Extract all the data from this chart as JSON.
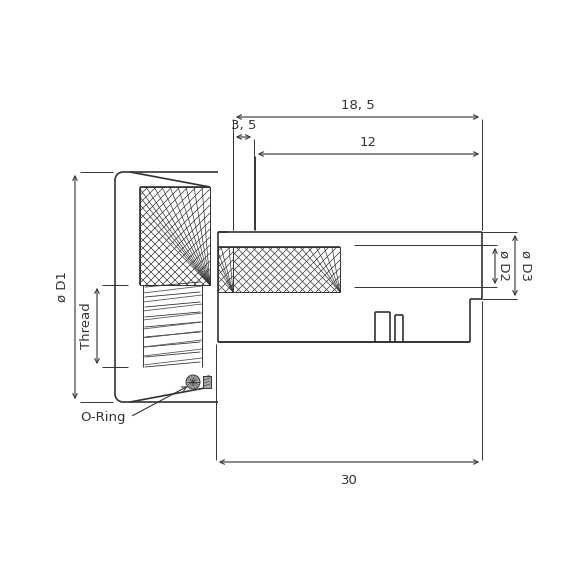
{
  "bg_color": "#ffffff",
  "line_color": "#333333",
  "hatch_color": "#555555",
  "dim_color": "#333333",
  "line_width": 1.2,
  "thin_lw": 0.7,
  "title": "",
  "dims": {
    "18_5": "18, 5",
    "3_5": "3, 5",
    "12": "12",
    "30": "30",
    "D1": "ø D1",
    "D2": "ø D2",
    "D3": "ø D3",
    "Thread": "Thread",
    "ORing": "O-Ring"
  }
}
